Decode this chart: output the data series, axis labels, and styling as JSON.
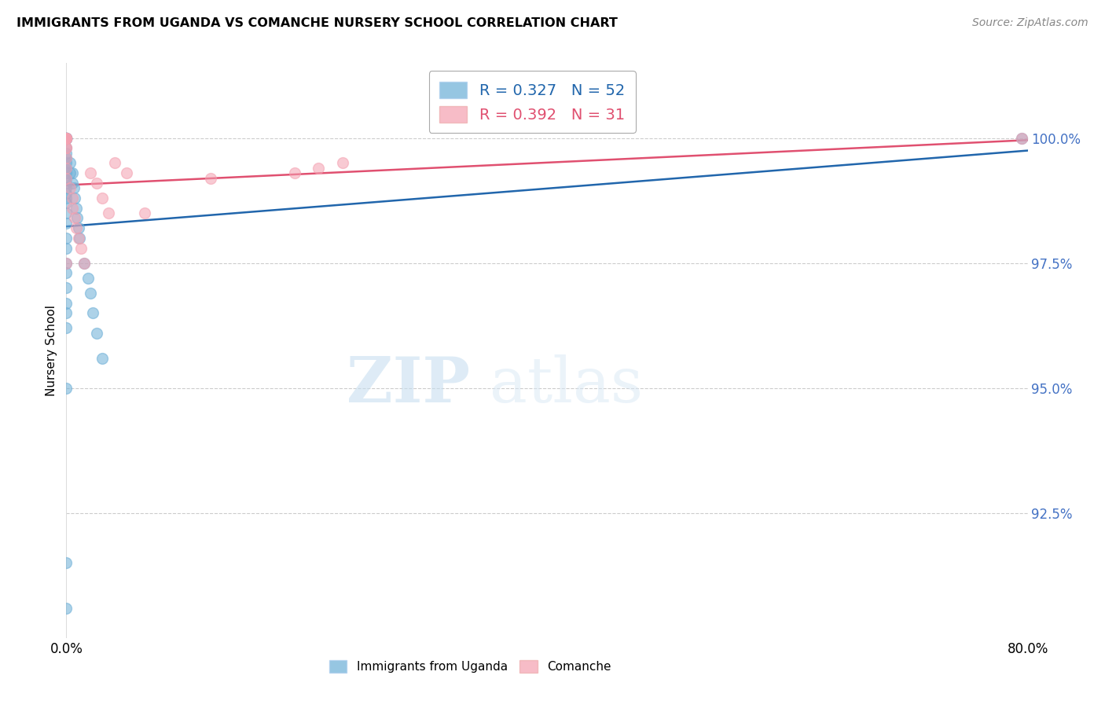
{
  "title": "IMMIGRANTS FROM UGANDA VS COMANCHE NURSERY SCHOOL CORRELATION CHART",
  "source": "Source: ZipAtlas.com",
  "ylabel": "Nursery School",
  "ylabel_tick_vals": [
    100.0,
    97.5,
    95.0,
    92.5
  ],
  "ylim": [
    90.0,
    101.5
  ],
  "xlim": [
    0.0,
    80.0
  ],
  "blue_color": "#6aaed6",
  "pink_color": "#f4a0b0",
  "blue_line_color": "#2166ac",
  "pink_line_color": "#e05070",
  "blue_scatter_x": [
    0.0,
    0.0,
    0.0,
    0.0,
    0.0,
    0.0,
    0.0,
    0.0,
    0.0,
    0.0,
    0.0,
    0.0,
    0.0,
    0.0,
    0.0,
    0.0,
    0.0,
    0.0,
    0.0,
    0.0,
    0.0,
    0.0,
    0.0,
    0.0,
    0.0,
    0.0,
    0.0,
    0.0,
    0.0,
    0.0,
    0.0,
    0.0,
    0.3,
    0.3,
    0.5,
    0.5,
    0.6,
    0.7,
    0.8,
    0.9,
    1.0,
    1.1,
    1.5,
    1.8,
    2.0,
    2.2,
    2.5,
    3.0,
    79.5,
    0.0,
    0.0,
    0.0
  ],
  "blue_scatter_y": [
    100.0,
    100.0,
    100.0,
    100.0,
    100.0,
    100.0,
    100.0,
    100.0,
    100.0,
    100.0,
    99.8,
    99.7,
    99.6,
    99.5,
    99.4,
    99.3,
    99.2,
    99.1,
    99.0,
    98.9,
    98.8,
    98.7,
    98.5,
    98.3,
    98.0,
    97.8,
    97.5,
    97.3,
    97.0,
    96.7,
    96.5,
    96.2,
    99.5,
    99.3,
    99.3,
    99.1,
    99.0,
    98.8,
    98.6,
    98.4,
    98.2,
    98.0,
    97.5,
    97.2,
    96.9,
    96.5,
    96.1,
    95.6,
    100.0,
    95.0,
    91.5,
    90.6
  ],
  "pink_scatter_x": [
    0.0,
    0.0,
    0.0,
    0.0,
    0.0,
    0.0,
    0.0,
    0.0,
    0.0,
    0.0,
    0.3,
    0.5,
    0.5,
    0.7,
    0.8,
    1.0,
    1.2,
    1.5,
    2.0,
    2.5,
    3.0,
    3.5,
    4.0,
    5.0,
    6.5,
    12.0,
    19.0,
    21.0,
    23.0,
    79.5,
    0.0,
    0.0
  ],
  "pink_scatter_y": [
    100.0,
    100.0,
    100.0,
    100.0,
    100.0,
    100.0,
    99.8,
    99.6,
    99.4,
    99.2,
    99.0,
    98.8,
    98.6,
    98.4,
    98.2,
    98.0,
    97.8,
    97.5,
    99.3,
    99.1,
    98.8,
    98.5,
    99.5,
    99.3,
    98.5,
    99.2,
    99.3,
    99.4,
    99.5,
    100.0,
    97.5,
    99.8
  ],
  "grid_color": "#cccccc",
  "background_color": "#ffffff"
}
